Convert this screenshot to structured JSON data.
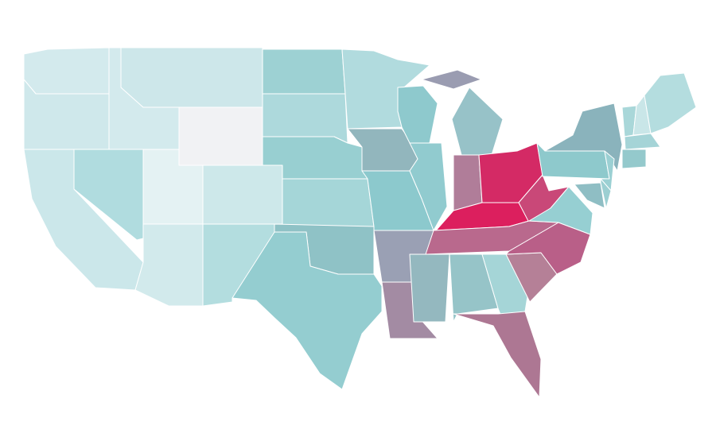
{
  "map": {
    "regions": [
      {
        "color": "#d3eaed"
      },
      {
        "color": "#cfe8eb"
      },
      {
        "color": "#cbe7ea"
      },
      {
        "color": "#b0dcdf"
      },
      {
        "color": "#d3eaed"
      },
      {
        "color": "#cde7ea"
      },
      {
        "color": "#f1f2f4"
      },
      {
        "color": "#e4f2f3"
      },
      {
        "color": "#cde8ea"
      },
      {
        "color": "#d2eaec"
      },
      {
        "color": "#b3dddf"
      },
      {
        "color": "#9dd1d3"
      },
      {
        "color": "#add9dc"
      },
      {
        "color": "#98cfd1"
      },
      {
        "color": "#a5d6d8"
      },
      {
        "color": "#8fc2c6"
      },
      {
        "color": "#94cdd0"
      },
      {
        "color": "#b1dbde"
      },
      {
        "color": "#92b6bd"
      },
      {
        "color": "#8cc9cd"
      },
      {
        "color": "#8ec9cd"
      },
      {
        "color": "#91cbcf"
      },
      {
        "color": "#97c2c8"
      },
      {
        "color": "#9a9cb1"
      },
      {
        "color": "#9aa0b4"
      },
      {
        "color": "#a38ba3"
      },
      {
        "color": "#b07d99"
      },
      {
        "color": "#d42a65"
      },
      {
        "color": "#dc1f5e"
      },
      {
        "color": "#c94878"
      },
      {
        "color": "#b9698d"
      },
      {
        "color": "#94b8bf"
      },
      {
        "color": "#96c4c8"
      },
      {
        "color": "#a5d5d7"
      },
      {
        "color": "#b58097"
      },
      {
        "color": "#b95f88"
      },
      {
        "color": "#96cfd2"
      },
      {
        "color": "#ad7793"
      },
      {
        "color": "#8ec9cc"
      },
      {
        "color": "#8ab3bc"
      },
      {
        "color": "#9bd0d3"
      },
      {
        "color": "#a9d7d9"
      },
      {
        "color": "#c9e6e8"
      },
      {
        "color": "#b4dddf"
      },
      {
        "color": "#a5d4d7"
      },
      {
        "color": "#94c9cc"
      },
      {
        "color": "#8fbec4"
      },
      {
        "color": "#9ccfd2"
      }
    ]
  }
}
